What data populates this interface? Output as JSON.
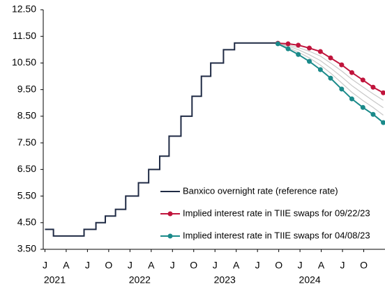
{
  "chart_data": {
    "type": "line",
    "xlim": [
      2020.98,
      2025.0
    ],
    "ylim": [
      3.5,
      12.5
    ],
    "yticks": [
      {
        "value": 3.5,
        "label": "3.50"
      },
      {
        "value": 4.5,
        "label": "4.50"
      },
      {
        "value": 5.5,
        "label": "5.50"
      },
      {
        "value": 6.5,
        "label": "6.50"
      },
      {
        "value": 7.5,
        "label": "7.50"
      },
      {
        "value": 8.5,
        "label": "8.50"
      },
      {
        "value": 9.5,
        "label": "9.50"
      },
      {
        "value": 10.5,
        "label": "10.50"
      },
      {
        "value": 11.5,
        "label": "11.50"
      },
      {
        "value": 12.5,
        "label": "12.50"
      }
    ],
    "xticks": [
      {
        "value": 2021.0,
        "label": "J"
      },
      {
        "value": 2021.25,
        "label": "A"
      },
      {
        "value": 2021.5,
        "label": "J"
      },
      {
        "value": 2021.75,
        "label": "O"
      },
      {
        "value": 2022.0,
        "label": "J"
      },
      {
        "value": 2022.25,
        "label": "A"
      },
      {
        "value": 2022.5,
        "label": "J"
      },
      {
        "value": 2022.75,
        "label": "O"
      },
      {
        "value": 2023.0,
        "label": "J"
      },
      {
        "value": 2023.25,
        "label": "A"
      },
      {
        "value": 2023.5,
        "label": "J"
      },
      {
        "value": 2023.75,
        "label": "O"
      },
      {
        "value": 2024.0,
        "label": "J"
      },
      {
        "value": 2024.25,
        "label": "A"
      },
      {
        "value": 2024.5,
        "label": "J"
      },
      {
        "value": 2024.75,
        "label": "O"
      }
    ],
    "xgroups": [
      {
        "value": 2021.0,
        "label": "2021"
      },
      {
        "value": 2022.0,
        "label": "2022"
      },
      {
        "value": 2023.0,
        "label": "2023"
      },
      {
        "value": 2024.0,
        "label": "2024"
      }
    ],
    "legend": "lower right",
    "series": [
      {
        "color": "#c8c8c8",
        "marker": false,
        "x": [
          2023.74,
          2023.86,
          2023.98,
          2024.11,
          2024.24,
          2024.36,
          2024.49,
          2024.61,
          2024.74,
          2024.86,
          2024.98
        ],
        "values": [
          11.24,
          11.17,
          11.08,
          10.94,
          10.76,
          10.5,
          10.2,
          9.89,
          9.6,
          9.34,
          9.1
        ]
      },
      {
        "color": "#c8c8c8",
        "marker": false,
        "x": [
          2023.74,
          2023.86,
          2023.98,
          2024.11,
          2024.24,
          2024.36,
          2024.49,
          2024.61,
          2024.74,
          2024.86,
          2024.98
        ],
        "values": [
          11.23,
          11.13,
          11.0,
          10.81,
          10.59,
          10.31,
          9.98,
          9.65,
          9.35,
          9.08,
          8.82
        ]
      },
      {
        "color": "#c8c8c8",
        "marker": false,
        "x": [
          2023.74,
          2023.86,
          2023.98,
          2024.11,
          2024.24,
          2024.36,
          2024.49,
          2024.61,
          2024.74,
          2024.86,
          2024.98
        ],
        "values": [
          11.23,
          11.08,
          10.91,
          10.69,
          10.42,
          10.12,
          9.75,
          9.4,
          9.09,
          8.83,
          8.54
        ]
      },
      {
        "name": "Banxico overnight rate (reference rate)",
        "color": "#1f2a44",
        "marker": false,
        "drawstyle": "steps-post",
        "x": [
          2021.0,
          2021.1,
          2021.46,
          2021.6,
          2021.71,
          2021.83,
          2021.95,
          2022.1,
          2022.22,
          2022.35,
          2022.46,
          2022.6,
          2022.73,
          2022.84,
          2022.95,
          2023.1,
          2023.23,
          2023.74
        ],
        "values": [
          4.25,
          4.0,
          4.25,
          4.5,
          4.75,
          5.0,
          5.5,
          6.0,
          6.5,
          7.0,
          7.75,
          8.5,
          9.25,
          10.0,
          10.5,
          11.0,
          11.25,
          11.25
        ]
      },
      {
        "name": "Implied interest rate in TIIE swaps for 09/22/23",
        "color": "#c0143c",
        "marker": true,
        "x": [
          2023.74,
          2023.86,
          2023.98,
          2024.11,
          2024.24,
          2024.36,
          2024.49,
          2024.61,
          2024.74,
          2024.86,
          2024.98
        ],
        "values": [
          11.24,
          11.22,
          11.17,
          11.06,
          10.93,
          10.69,
          10.43,
          10.14,
          9.86,
          9.59,
          9.38
        ]
      },
      {
        "name": "Implied interest rate in TIIE swaps for 04/08/23",
        "color": "#1a8a8a",
        "marker": true,
        "x": [
          2023.74,
          2023.86,
          2023.98,
          2024.11,
          2024.24,
          2024.36,
          2024.49,
          2024.61,
          2024.74,
          2024.86,
          2024.98
        ],
        "values": [
          11.22,
          11.03,
          10.82,
          10.56,
          10.25,
          9.93,
          9.52,
          9.15,
          8.83,
          8.57,
          8.26
        ]
      }
    ]
  }
}
